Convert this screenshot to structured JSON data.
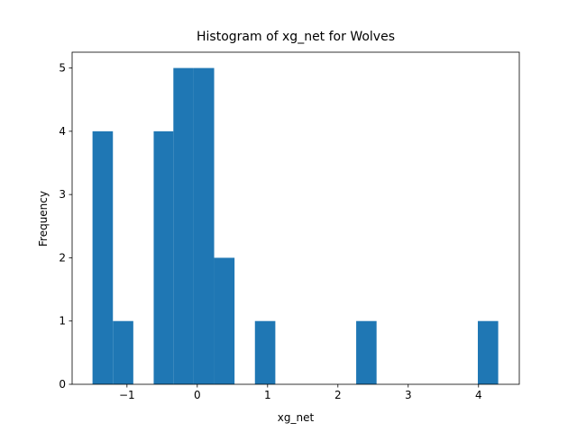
{
  "chart_data": {
    "type": "histogram",
    "title": "Histogram of xg_net for Wolves",
    "x_label": "xg_net",
    "y_label": "Frequency",
    "color": "#1f77b4",
    "bins": [
      -1.49,
      -1.2,
      -0.91,
      -0.62,
      -0.34,
      -0.05,
      0.24,
      0.53,
      0.82,
      1.11,
      1.4,
      1.68,
      1.97,
      2.26,
      2.55,
      2.84,
      3.13,
      3.41,
      3.7,
      3.99,
      4.28
    ],
    "values": [
      4,
      1,
      0,
      4,
      5,
      5,
      2,
      0,
      1,
      0,
      0,
      0,
      0,
      1,
      0,
      0,
      0,
      0,
      0,
      1
    ],
    "xlim": [
      -1.78,
      4.58
    ],
    "ylim": [
      0,
      5.25
    ],
    "xticks": [
      {
        "value": -1,
        "label": "−1"
      },
      0,
      1,
      2,
      3,
      4
    ],
    "yticks": [
      0,
      1,
      2,
      3,
      4,
      5
    ],
    "grid": false
  }
}
